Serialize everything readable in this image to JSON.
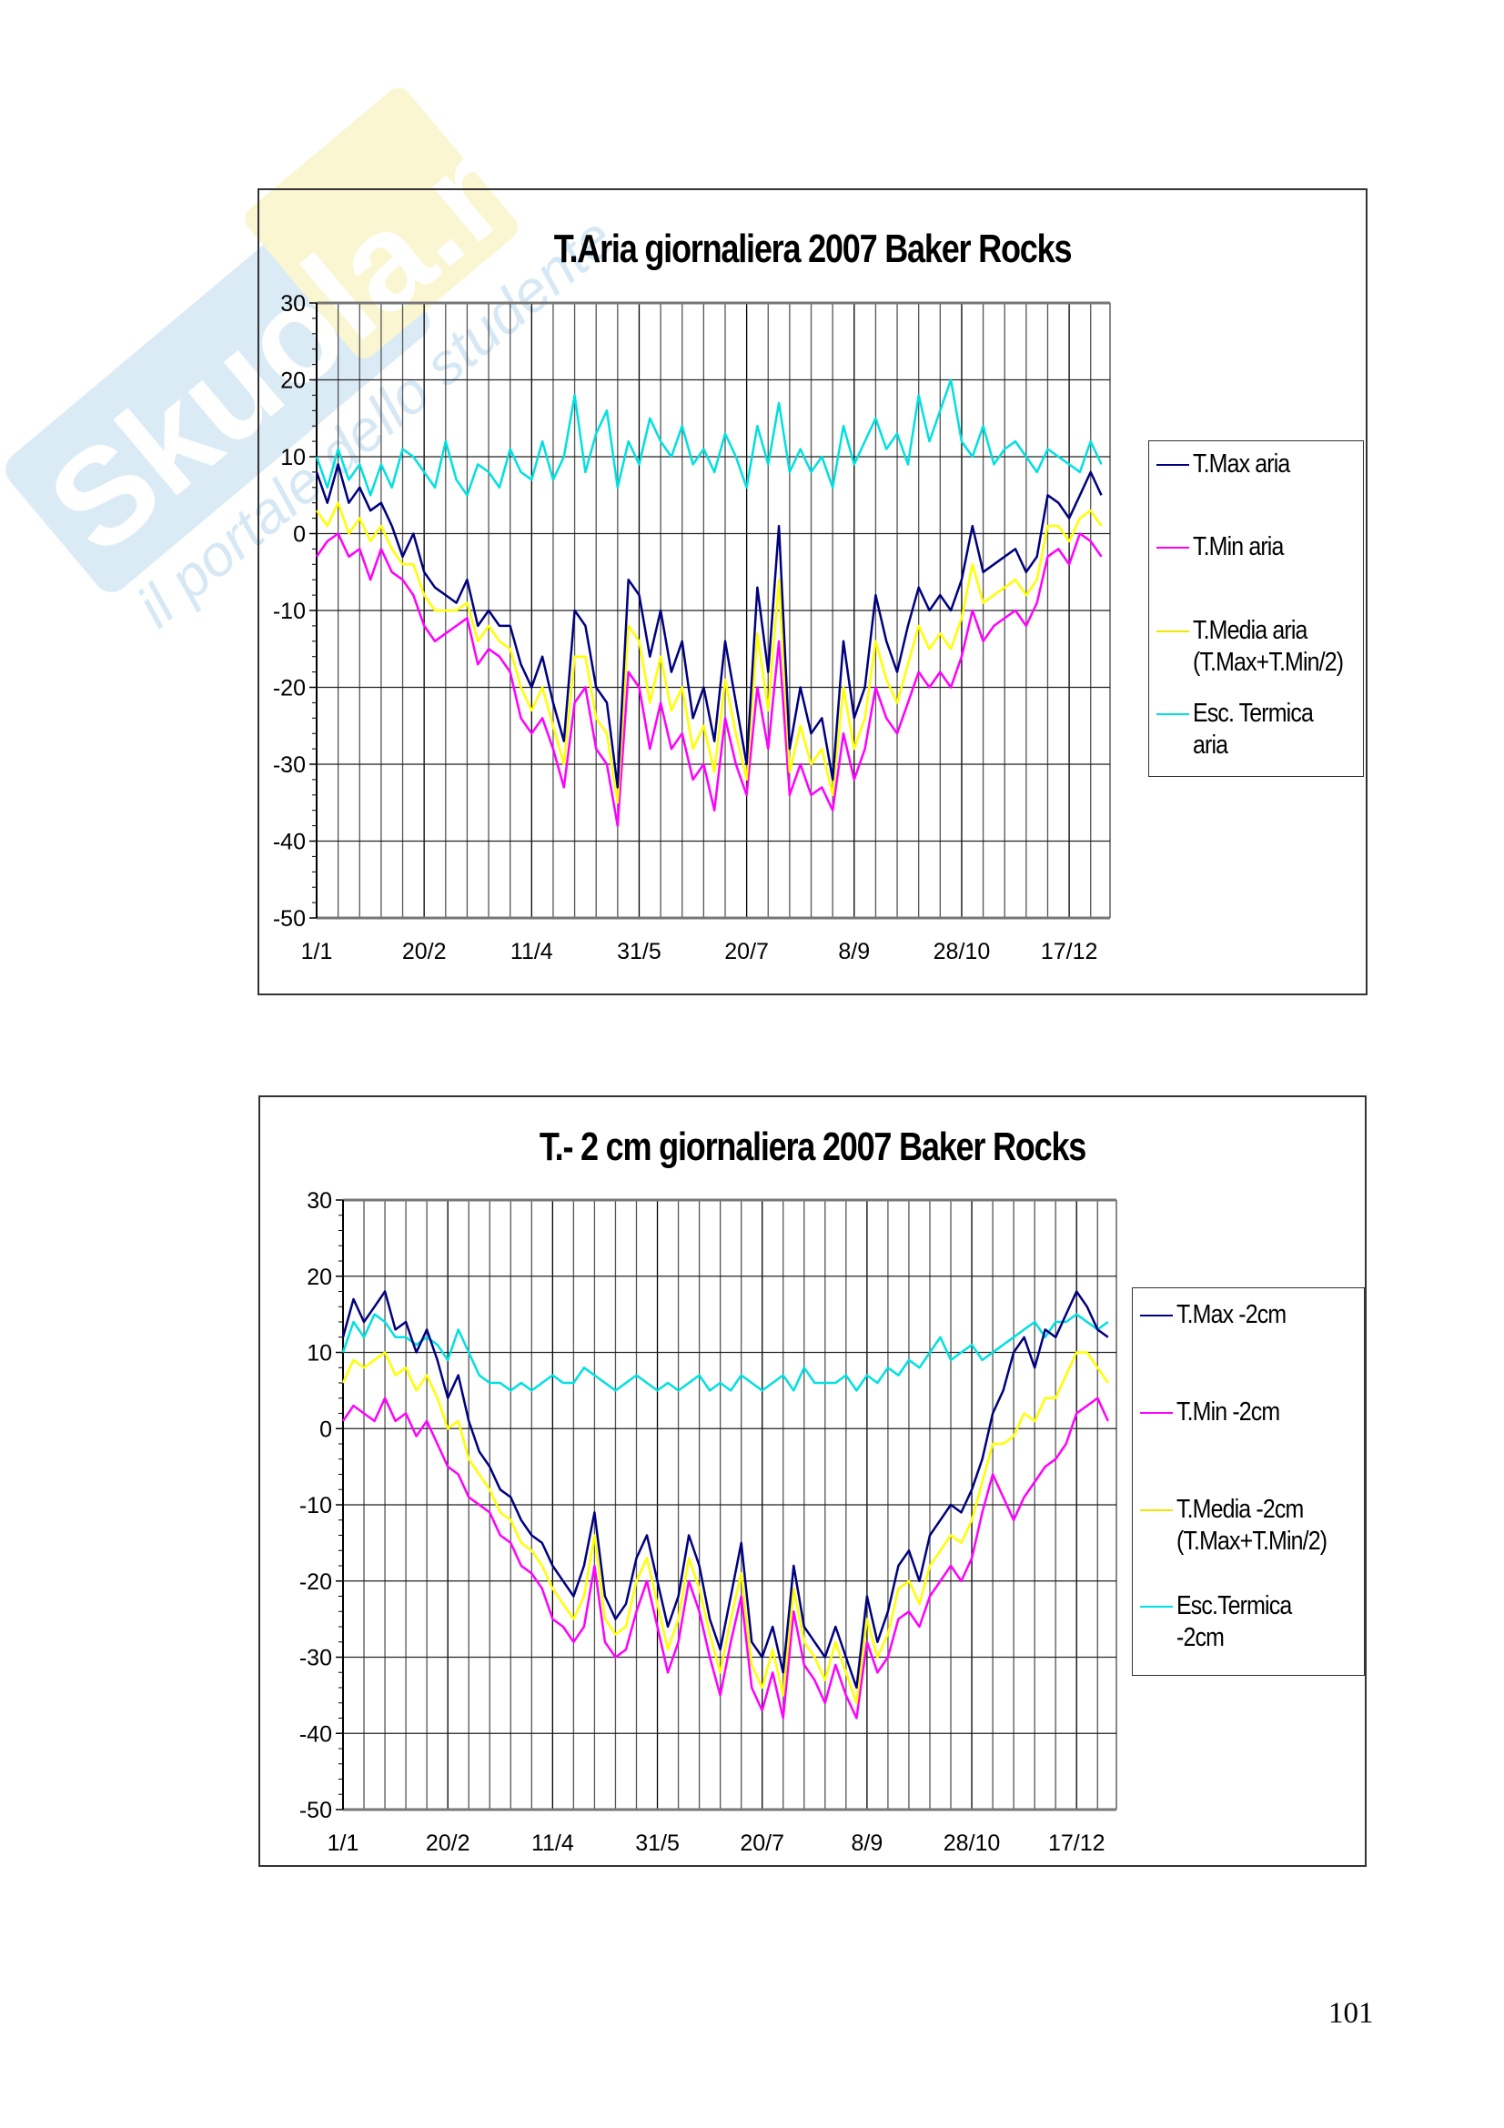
{
  "watermark": {
    "text": "Skuola.net",
    "subtext": "il portale dello studente"
  },
  "page_number": "101",
  "colors": {
    "tmax": "#000080",
    "tmin": "#ff00ff",
    "tmedia": "#ffff00",
    "esc": "#00e0e0",
    "grid": "#000000",
    "border": "#333333"
  },
  "chart_data": [
    {
      "type": "line",
      "title": "T.Aria giornaliera 2007 Baker Rocks",
      "xlabel": "",
      "ylabel": "",
      "ylim": [
        -50,
        30
      ],
      "yticks": [
        "30",
        "20",
        "10",
        "0",
        "-10",
        "-20",
        "-30",
        "-40",
        "-50"
      ],
      "xticks": [
        "1/1",
        "20/2",
        "11/4",
        "31/5",
        "20/7",
        "8/9",
        "28/10",
        "17/12"
      ],
      "x_unit": "day of year (step 5)",
      "x_step_days": 5,
      "grid": true,
      "legend_position": "right",
      "series": [
        {
          "name": "T.Max aria",
          "color_key": "tmax",
          "values": [
            8,
            4,
            9,
            4,
            6,
            3,
            4,
            1,
            -3,
            0,
            -5,
            -7,
            -8,
            -9,
            -6,
            -12,
            -10,
            -12,
            -12,
            -17,
            -20,
            -16,
            -22,
            -27,
            -10,
            -12,
            -20,
            -22,
            -33,
            -6,
            -8,
            -16,
            -10,
            -18,
            -14,
            -24,
            -20,
            -27,
            -14,
            -22,
            -30,
            -7,
            -18,
            1,
            -28,
            -20,
            -26,
            -24,
            -32,
            -14,
            -24,
            -20,
            -8,
            -14,
            -18,
            -12,
            -7,
            -10,
            -8,
            -10,
            -6,
            1,
            -5,
            -4,
            -3,
            -2,
            -5,
            -3,
            5,
            4,
            2,
            5,
            8,
            5
          ]
        },
        {
          "name": "T.Min aria",
          "color_key": "tmin",
          "values": [
            -3,
            -1,
            0,
            -3,
            -2,
            -6,
            -2,
            -5,
            -6,
            -8,
            -12,
            -14,
            -13,
            -12,
            -11,
            -17,
            -15,
            -16,
            -18,
            -24,
            -26,
            -24,
            -28,
            -33,
            -22,
            -20,
            -28,
            -30,
            -38,
            -18,
            -20,
            -28,
            -22,
            -28,
            -26,
            -32,
            -30,
            -36,
            -24,
            -30,
            -34,
            -20,
            -28,
            -14,
            -34,
            -30,
            -34,
            -33,
            -36,
            -26,
            -32,
            -28,
            -20,
            -24,
            -26,
            -22,
            -18,
            -20,
            -18,
            -20,
            -16,
            -10,
            -14,
            -12,
            -11,
            -10,
            -12,
            -9,
            -3,
            -2,
            -4,
            0,
            -1,
            -3
          ]
        },
        {
          "name": "T.Media aria (T.Max+T.Min/2)",
          "color_key": "tmedia",
          "values": [
            3,
            1,
            4,
            0,
            2,
            -1,
            1,
            -2,
            -4,
            -4,
            -8,
            -10,
            -10,
            -10,
            -9,
            -14,
            -12,
            -14,
            -15,
            -20,
            -23,
            -20,
            -25,
            -30,
            -16,
            -16,
            -24,
            -26,
            -35,
            -12,
            -14,
            -22,
            -16,
            -23,
            -20,
            -28,
            -25,
            -31,
            -19,
            -26,
            -32,
            -13,
            -23,
            -6,
            -31,
            -25,
            -30,
            -28,
            -34,
            -20,
            -28,
            -24,
            -14,
            -19,
            -22,
            -17,
            -12,
            -15,
            -13,
            -15,
            -11,
            -4,
            -9,
            -8,
            -7,
            -6,
            -8,
            -6,
            1,
            1,
            -1,
            2,
            3,
            1
          ]
        },
        {
          "name": "Esc. Termica aria",
          "color_key": "esc",
          "values": [
            10,
            6,
            11,
            7,
            9,
            5,
            9,
            6,
            11,
            10,
            8,
            6,
            12,
            7,
            5,
            9,
            8,
            6,
            11,
            8,
            7,
            12,
            7,
            10,
            18,
            8,
            13,
            16,
            6,
            12,
            9,
            15,
            12,
            10,
            14,
            9,
            11,
            8,
            13,
            10,
            6,
            14,
            9,
            17,
            8,
            11,
            8,
            10,
            6,
            14,
            9,
            12,
            15,
            11,
            13,
            9,
            18,
            12,
            16,
            20,
            12,
            10,
            14,
            9,
            11,
            12,
            10,
            8,
            11,
            10,
            9,
            8,
            12,
            9
          ]
        }
      ]
    },
    {
      "type": "line",
      "title": "T.- 2 cm giornaliera 2007 Baker Rocks",
      "xlabel": "",
      "ylabel": "",
      "ylim": [
        -50,
        30
      ],
      "yticks": [
        "30",
        "20",
        "10",
        "0",
        "-10",
        "-20",
        "-30",
        "-40",
        "-50"
      ],
      "xticks": [
        "1/1",
        "20/2",
        "11/4",
        "31/5",
        "20/7",
        "8/9",
        "28/10",
        "17/12"
      ],
      "x_unit": "day of year (step 5)",
      "x_step_days": 5,
      "grid": true,
      "legend_position": "right",
      "series": [
        {
          "name": "T.Max -2cm",
          "color_key": "tmax",
          "values": [
            12,
            17,
            14,
            16,
            18,
            13,
            14,
            10,
            13,
            9,
            4,
            7,
            1,
            -3,
            -5,
            -8,
            -9,
            -12,
            -14,
            -15,
            -18,
            -20,
            -22,
            -18,
            -11,
            -22,
            -25,
            -23,
            -17,
            -14,
            -20,
            -26,
            -22,
            -14,
            -18,
            -25,
            -29,
            -22,
            -15,
            -28,
            -30,
            -26,
            -32,
            -18,
            -26,
            -28,
            -30,
            -26,
            -30,
            -34,
            -22,
            -28,
            -24,
            -18,
            -16,
            -20,
            -14,
            -12,
            -10,
            -11,
            -8,
            -4,
            2,
            5,
            10,
            12,
            8,
            13,
            12,
            15,
            18,
            16,
            13,
            12
          ]
        },
        {
          "name": "T.Min -2cm",
          "color_key": "tmin",
          "values": [
            1,
            3,
            2,
            1,
            4,
            1,
            2,
            -1,
            1,
            -2,
            -5,
            -6,
            -9,
            -10,
            -11,
            -14,
            -15,
            -18,
            -19,
            -21,
            -25,
            -26,
            -28,
            -26,
            -18,
            -28,
            -30,
            -29,
            -24,
            -20,
            -26,
            -32,
            -28,
            -20,
            -24,
            -30,
            -35,
            -28,
            -22,
            -34,
            -37,
            -32,
            -38,
            -24,
            -31,
            -33,
            -36,
            -31,
            -35,
            -38,
            -28,
            -32,
            -30,
            -25,
            -24,
            -26,
            -22,
            -20,
            -18,
            -20,
            -17,
            -11,
            -6,
            -9,
            -12,
            -9,
            -7,
            -5,
            -4,
            -2,
            2,
            3,
            4,
            1
          ]
        },
        {
          "name": "T.Media -2cm (T.Max+T.Min/2)",
          "color_key": "tmedia",
          "values": [
            6,
            9,
            8,
            9,
            10,
            7,
            8,
            5,
            7,
            4,
            0,
            1,
            -4,
            -6,
            -8,
            -11,
            -12,
            -15,
            -16,
            -18,
            -21,
            -23,
            -25,
            -22,
            -14,
            -25,
            -27,
            -26,
            -20,
            -17,
            -23,
            -29,
            -25,
            -17,
            -21,
            -27,
            -32,
            -25,
            -19,
            -31,
            -34,
            -29,
            -35,
            -21,
            -28,
            -30,
            -33,
            -28,
            -32,
            -36,
            -25,
            -30,
            -27,
            -21,
            -20,
            -23,
            -18,
            -16,
            -14,
            -15,
            -12,
            -7,
            -2,
            -2,
            -1,
            2,
            1,
            4,
            4,
            7,
            10,
            10,
            8,
            6
          ]
        },
        {
          "name": "Esc.Termica -2cm",
          "color_key": "esc",
          "values": [
            10,
            14,
            12,
            15,
            14,
            12,
            12,
            11,
            12,
            11,
            9,
            13,
            10,
            7,
            6,
            6,
            5,
            6,
            5,
            6,
            7,
            6,
            6,
            8,
            7,
            6,
            5,
            6,
            7,
            6,
            5,
            6,
            5,
            6,
            7,
            5,
            6,
            5,
            7,
            6,
            5,
            6,
            7,
            5,
            8,
            6,
            6,
            6,
            7,
            5,
            7,
            6,
            8,
            7,
            9,
            8,
            10,
            12,
            9,
            10,
            11,
            9,
            10,
            11,
            12,
            13,
            14,
            12,
            14,
            14,
            15,
            14,
            13,
            14
          ]
        }
      ]
    }
  ]
}
